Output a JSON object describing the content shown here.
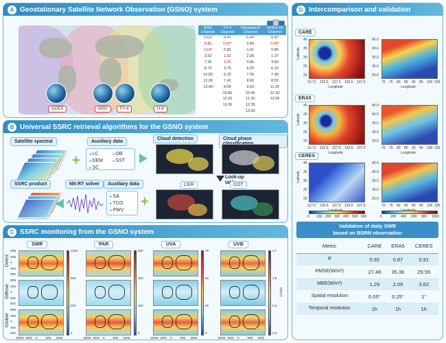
{
  "panel_a": {
    "letter": "A",
    "title": "Geostationary Satellite Network Observation (GSNO) system",
    "satellites": [
      "GOES",
      "MSG",
      "FY-4",
      "H-8"
    ],
    "table": {
      "headers": [
        [
          "MSG",
          "Channel"
        ],
        [
          "FY-4",
          "Channel"
        ],
        [
          "Himawari-8",
          "Channel"
        ],
        [
          "GOES-16",
          "Channel"
        ]
      ],
      "rows": [
        [
          "0.63*",
          "0.47",
          "0.64*",
          "0.47"
        ],
        [
          "0.81",
          "0.65*",
          "0.86",
          "0.64*"
        ],
        [
          "1.64*",
          "0.82",
          "1.61",
          "0.86"
        ],
        [
          "3.92",
          "1.61",
          "2.26",
          "1.37"
        ],
        [
          "7.35",
          "2.25",
          "3.85",
          "3.90"
        ],
        [
          "8.70",
          "3.75",
          "6.25",
          "6.15"
        ],
        [
          "10.80",
          "6.25",
          "7.35",
          "7.40"
        ],
        [
          "12.00",
          "7.42",
          "8.60",
          "8.50"
        ],
        [
          "13.40",
          "8.55",
          "9.63",
          "11.20"
        ],
        [
          "",
          "10.80",
          "10.45",
          "12.30"
        ],
        [
          "",
          "12.00",
          "11.20",
          "13.30"
        ],
        [
          "",
          "13.30",
          "12.35",
          ""
        ],
        [
          "",
          "",
          "13.30",
          ""
        ]
      ],
      "highlight": [
        [
          0,
          0
        ],
        [
          0,
          2
        ],
        [
          1,
          1
        ],
        [
          1,
          3
        ],
        [
          2,
          0
        ],
        [
          4,
          1
        ]
      ]
    }
  },
  "panel_b": {
    "letter": "B",
    "title": "Universal SSRC retrieval algorithms for the GSNO system",
    "satellite_spectral": "Satellite spectral",
    "auxiliary_top": "Auxiliary data",
    "aux_top_items": [
      "LC",
      "DEM",
      "SC",
      "OB",
      "SST"
    ],
    "cloud_detection": "Cloud detection",
    "cloud_phase": "Cloud phase classification",
    "lookup": [
      "Look-up",
      "table"
    ],
    "cer": "CER",
    "cot": "COT",
    "ssrc_product": "SSRC product",
    "nn_solver": "NN RT solver",
    "auxiliary_bottom": "Auxiliary data",
    "aux_bottom_items": [
      "SA",
      "TCO",
      "PWV"
    ]
  },
  "panel_c": {
    "letter": "C",
    "title": "SSRC monitoring from the GSNO system",
    "variables": [
      "SWR",
      "PAR",
      "UVA",
      "UVB"
    ],
    "rows": [
      "Direct",
      "Diffuse",
      "Global"
    ],
    "lat_ticks": [
      "90N",
      "45N",
      "0",
      "45S",
      "90S"
    ],
    "lon_ticks": [
      "180W",
      "90W",
      "0",
      "90E",
      "180E"
    ],
    "colorbars": [
      [
        "1200",
        "800",
        "400",
        "0"
      ],
      [
        "500",
        "300",
        "100",
        "0"
      ],
      [
        "78",
        "52",
        "26",
        "0"
      ],
      [
        "2.7",
        "1.8",
        "0.9",
        "0.0"
      ]
    ],
    "unit": "(W/m²)"
  },
  "panel_d": {
    "letter": "D",
    "title": "Intercomparison and validation",
    "products": [
      "CARE",
      "ERA5",
      "CERES"
    ],
    "xlabel": "Longitude",
    "ylabel": "Latitude",
    "left_x_ticks": [
      "117.5",
      "122.5",
      "127.5",
      "132.5",
      "137.5"
    ],
    "left_y_ticks": [
      "40",
      "35",
      "30",
      "25",
      "20"
    ],
    "right_x_ticks": [
      "70",
      "75",
      "80",
      "85",
      "90",
      "95",
      "100",
      "105"
    ],
    "right_y_ticks": [
      "45.0",
      "40.0",
      "35.0",
      "30.0",
      "25.0"
    ],
    "left_cbar_ticks": [
      "0",
      "100",
      "200",
      "300",
      "400",
      "500",
      "600"
    ],
    "right_cbar_ticks": [
      "0",
      "200",
      "400",
      "600",
      "800",
      "1000"
    ],
    "validation_title": [
      "Validation of daily SWR",
      "based on BSRN observation"
    ],
    "table_headers": [
      "Metric",
      "CARE",
      "ERA5",
      "CERES"
    ],
    "table_rows": [
      [
        "R",
        "0.92",
        "0.87",
        "0.91"
      ],
      [
        "RMSE(W/m²)",
        "27.48",
        "35.36",
        "29.59"
      ],
      [
        "MBE(W/m²)",
        "1.29",
        "2.09",
        "3.62"
      ],
      [
        "Spatial resolution",
        "0.05°",
        "0.25°",
        "1°"
      ],
      [
        "Temporal resolution",
        "1h",
        "1h",
        "1h"
      ]
    ]
  },
  "colors": {
    "accent": "#2f8cc4",
    "panel_bg": "#f3fafd",
    "border": "#5fb0d6",
    "highlight": "#d01c1c"
  }
}
